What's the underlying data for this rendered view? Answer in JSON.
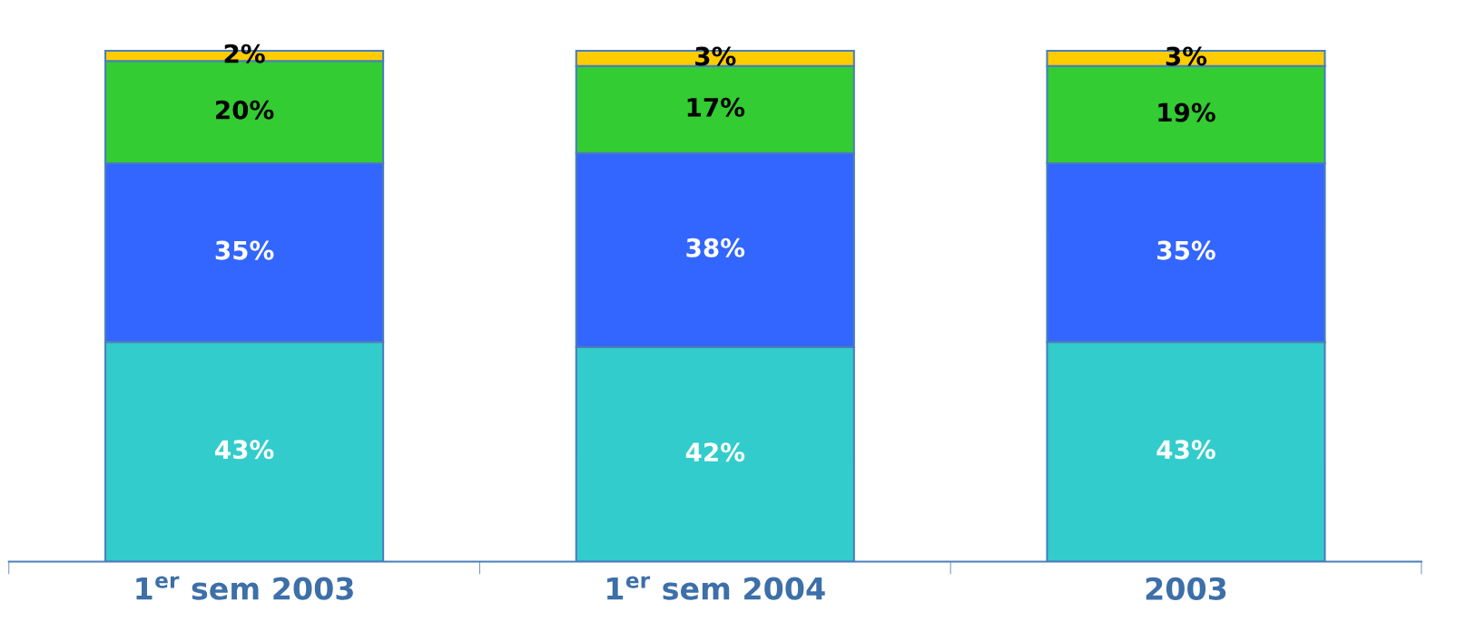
{
  "chart_data": {
    "type": "bar",
    "stacked": true,
    "categories": [
      "1$^{er}$ sem 2003",
      "1$^{er}$ sem 2004",
      "2003"
    ],
    "series": [
      {
        "color": "#33cccc",
        "values": [
          43,
          42,
          43
        ],
        "value_labels": [
          "43%",
          "42%",
          "43%"
        ]
      },
      {
        "color": "#3366ff",
        "values": [
          35,
          38,
          35
        ],
        "value_labels": [
          "35%",
          "38%",
          "35%"
        ]
      },
      {
        "color": "#33cc33",
        "values": [
          20,
          17,
          19
        ],
        "value_labels": [
          "20%",
          "17%",
          "19%"
        ]
      },
      {
        "color": "#ffcc00",
        "values": [
          2,
          3,
          3
        ],
        "value_labels": [
          "2%",
          "3%",
          "3%"
        ]
      }
    ],
    "grid": false,
    "legend": false
  }
}
